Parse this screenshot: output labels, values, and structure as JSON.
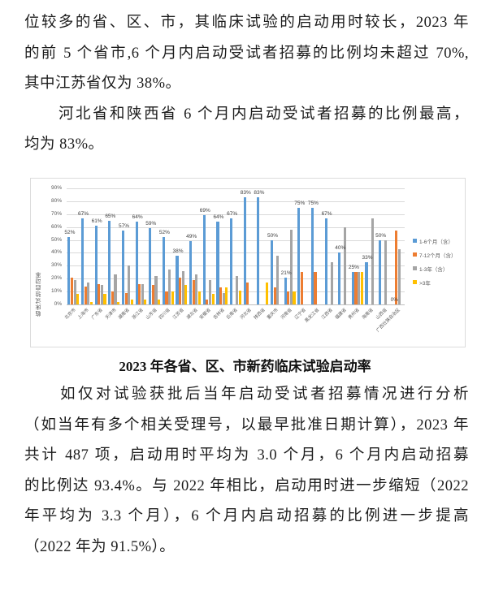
{
  "page": {
    "paragraphs_top": [
      {
        "lines": [
          "位较多的省、区、市，其临床试验的启动用时较长，2023 年",
          "的前 5 个省市,6 个月内启动受试者招募的比例均未超过 70%,",
          "其中江苏省仅为 38%。"
        ]
      },
      {
        "lines": [
          "　　河北省和陕西省 6 个月内启动受试者招募的比例最高，",
          "均为 83%。"
        ]
      }
    ],
    "chart_caption": "2023 年各省、区、市新药临床试验启动率",
    "paragraphs_bottom": [
      {
        "lines": [
          "　　如仅对试验获批后当年启动受试者招募情况进行分析",
          "（如当年有多个相关受理号，以最早批准日期计算），2023 年",
          "共计 487 项，启动用时平均为 3.0 个月，6 个月内启动招募",
          "的比例达 93.4%。与 2022 年相比，启动用时进一步缩短（2022",
          "年平均为 3.3 个月），6 个月内启动招募的比例进一步提高",
          "（2022 年为 91.5%）。"
        ]
      }
    ]
  },
  "chart_data": {
    "type": "bar",
    "title": "2023 年各省、区、市新药临床试验启动率",
    "ylabel": "临床试验启动率",
    "ylim": [
      0,
      90
    ],
    "ytick_labels": [
      "0%",
      "10%",
      "20%",
      "30%",
      "40%",
      "50%",
      "60%",
      "70%",
      "80%",
      "90%"
    ],
    "grid": true,
    "legend_position": "right",
    "data_label_series": "1-6个月（含）",
    "categories": [
      "北京市",
      "上海市",
      "广东省",
      "天津市",
      "湖南省",
      "浙江省",
      "山东省",
      "四川省",
      "江苏省",
      "湖北省",
      "安徽省",
      "吉林省",
      "云南省",
      "河北省",
      "陕西省",
      "重庆市",
      "河南省",
      "辽宁省",
      "黑龙江省",
      "江西省",
      "福建省",
      "贵州省",
      "海南省",
      "山西省",
      "广西壮族自治区"
    ],
    "series": [
      {
        "name": "1-6个月（含）",
        "color": "#5B9BD5",
        "values": [
          52,
          67,
          61,
          65,
          57,
          64,
          59,
          52,
          38,
          49,
          69,
          64,
          67,
          83,
          83,
          50,
          21,
          75,
          75,
          67,
          40,
          25,
          33,
          50,
          0
        ]
      },
      {
        "name": "7-12个月（含）",
        "color": "#ED7D31",
        "values": [
          21,
          14,
          16,
          10,
          9,
          16,
          15,
          10,
          21,
          19,
          4,
          13,
          0,
          17,
          0,
          13,
          10,
          25,
          25,
          0,
          0,
          25,
          0,
          0,
          57
        ]
      },
      {
        "name": "1-3年（含）",
        "color": "#A5A5A5",
        "values": [
          19,
          17,
          15,
          23,
          30,
          16,
          22,
          27,
          26,
          23,
          19,
          9,
          22,
          0,
          0,
          38,
          58,
          0,
          0,
          33,
          60,
          25,
          67,
          50,
          43
        ]
      },
      {
        "name": ">3年",
        "color": "#FFC000",
        "values": [
          8,
          2,
          8,
          2,
          4,
          4,
          4,
          10,
          15,
          10,
          8,
          13,
          11,
          0,
          17,
          0,
          10,
          0,
          0,
          0,
          0,
          25,
          0,
          0,
          0
        ]
      }
    ]
  }
}
